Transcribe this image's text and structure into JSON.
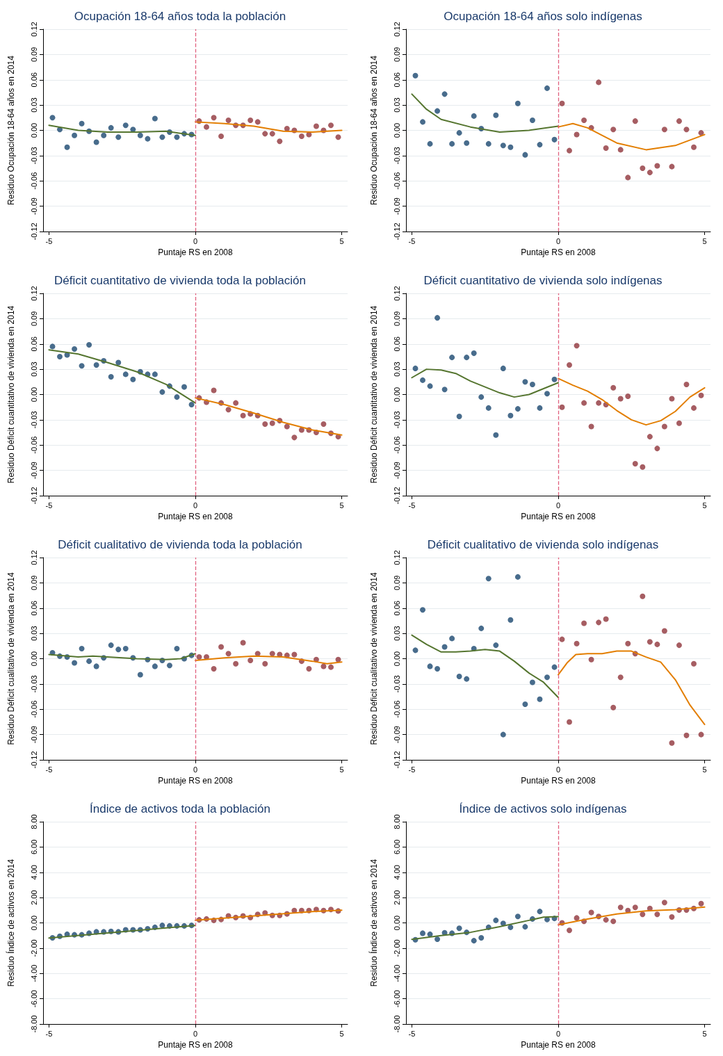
{
  "chart_data": [
    {
      "type": "scatter",
      "title": "Ocupación 18-64 años toda la población",
      "xlabel": "Puntaje RS en 2008",
      "ylabel": "Residuo Ocupación 18-64 años en 2014",
      "xlim": [
        -5.2,
        5.2
      ],
      "xticks": [
        -5,
        0,
        5
      ],
      "ylim": [
        -0.12,
        0.12
      ],
      "yticks": [
        -0.12,
        -0.09,
        -0.06,
        -0.03,
        {
          "value": 0,
          "label": "0.00"
        },
        0.03,
        0.06,
        0.09,
        0.12
      ],
      "grid": "y",
      "marker": "circle",
      "ref_lines": [
        {
          "axis": "x",
          "value": 0,
          "color": "#e0607e",
          "line_style": "dashed"
        }
      ],
      "series": [
        {
          "type": "scatter",
          "color": "#1a476f",
          "x": [
            -4.88,
            -4.63,
            -4.38,
            -4.13,
            -3.88,
            -3.63,
            -3.38,
            -3.13,
            -2.88,
            -2.63,
            -2.38,
            -2.13,
            -1.88,
            -1.63,
            -1.38,
            -1.13,
            -0.88,
            -0.63,
            -0.38,
            -0.13
          ],
          "values": [
            0.015,
            0.001,
            -0.02,
            -0.006,
            0.008,
            -0.001,
            -0.014,
            -0.006,
            0.003,
            -0.008,
            0.006,
            0.001,
            -0.006,
            -0.01,
            0.014,
            -0.008,
            -0.002,
            -0.008,
            -0.004,
            -0.005
          ]
        },
        {
          "type": "scatter",
          "color": "#90353b",
          "x": [
            0.13,
            0.38,
            0.63,
            0.88,
            1.13,
            1.38,
            1.63,
            1.88,
            2.13,
            2.38,
            2.63,
            2.88,
            3.13,
            3.38,
            3.63,
            3.88,
            4.13,
            4.38,
            4.63,
            4.88
          ],
          "values": [
            0.011,
            0.004,
            0.015,
            -0.007,
            0.012,
            0.006,
            0.006,
            0.012,
            0.01,
            -0.004,
            -0.004,
            -0.013,
            0.002,
            0,
            -0.007,
            -0.005,
            0.005,
            0,
            0.006,
            -0.008
          ]
        },
        {
          "type": "line",
          "marker": "none",
          "color": "#55752f",
          "x": [
            -5,
            -4,
            -3,
            -2,
            -1,
            0
          ],
          "values": [
            0.006,
            0,
            -0.002,
            -0.002,
            -0.001,
            -0.006
          ]
        },
        {
          "type": "line",
          "marker": "none",
          "color": "#e37e00",
          "x": [
            0,
            1,
            2,
            3,
            4,
            5
          ],
          "values": [
            0.01,
            0.008,
            0.005,
            -0.001,
            -0.002,
            0
          ]
        }
      ]
    },
    {
      "type": "scatter",
      "title": "Ocupación 18-64 años solo indígenas",
      "xlabel": "Puntaje RS en 2008",
      "ylabel": "Residuo Ocupación 18-64 años en 2014",
      "xlim": [
        -5.2,
        5.2
      ],
      "xticks": [
        -5,
        0,
        5
      ],
      "ylim": [
        -0.12,
        0.12
      ],
      "yticks": [
        -0.12,
        -0.09,
        -0.06,
        -0.03,
        {
          "value": 0,
          "label": "0.00"
        },
        0.03,
        0.06,
        0.09,
        0.12
      ],
      "grid": "y",
      "marker": "circle",
      "ref_lines": [
        {
          "axis": "x",
          "value": 0,
          "color": "#e0607e",
          "line_style": "dashed"
        }
      ],
      "series": [
        {
          "type": "scatter",
          "color": "#1a476f",
          "x": [
            -4.88,
            -4.63,
            -4.38,
            -4.13,
            -3.88,
            -3.63,
            -3.38,
            -3.13,
            -2.88,
            -2.63,
            -2.38,
            -2.13,
            -1.88,
            -1.63,
            -1.38,
            -1.13,
            -0.88,
            -0.63,
            -0.38,
            -0.13
          ],
          "values": [
            0.065,
            0.01,
            -0.016,
            0.023,
            0.043,
            -0.016,
            -0.003,
            -0.015,
            0.017,
            0.002,
            -0.016,
            0.018,
            -0.018,
            -0.02,
            0.032,
            -0.029,
            0.012,
            -0.017,
            0.05,
            -0.011
          ]
        },
        {
          "type": "scatter",
          "color": "#90353b",
          "x": [
            0.13,
            0.38,
            0.63,
            0.88,
            1.13,
            1.38,
            1.63,
            1.88,
            2.13,
            2.38,
            2.63,
            2.88,
            3.13,
            3.38,
            3.63,
            3.88,
            4.13,
            4.38,
            4.63,
            4.88
          ],
          "values": [
            0.032,
            -0.024,
            -0.005,
            0.012,
            0.003,
            0.057,
            -0.021,
            0.001,
            -0.023,
            -0.056,
            0.011,
            -0.045,
            -0.05,
            -0.042,
            0.001,
            -0.043,
            0.011,
            0.001,
            -0.02,
            -0.003
          ]
        },
        {
          "type": "line",
          "marker": "none",
          "color": "#55752f",
          "x": [
            -5,
            -4.5,
            -4,
            -3,
            -2,
            -1,
            0
          ],
          "values": [
            0.043,
            0.025,
            0.013,
            0.004,
            -0.002,
            0,
            0.005
          ]
        },
        {
          "type": "line",
          "marker": "none",
          "color": "#e37e00",
          "x": [
            0,
            0.5,
            1,
            2,
            3,
            4,
            5
          ],
          "values": [
            0.004,
            0.008,
            0.003,
            -0.015,
            -0.023,
            -0.018,
            -0.005
          ]
        }
      ]
    },
    {
      "type": "scatter",
      "title": "Déficit cuantitativo de vivienda toda la población",
      "xlabel": "Puntaje RS en 2008",
      "ylabel": "Residuo Déficit cuantitativo de vivienda en 2014",
      "xlim": [
        -5.2,
        5.2
      ],
      "xticks": [
        -5,
        0,
        5
      ],
      "ylim": [
        -0.12,
        0.12
      ],
      "yticks": [
        -0.12,
        -0.09,
        -0.06,
        -0.03,
        {
          "value": 0,
          "label": "0.00"
        },
        0.03,
        0.06,
        0.09,
        0.12
      ],
      "grid": "y",
      "marker": "circle",
      "ref_lines": [
        {
          "axis": "x",
          "value": 0,
          "color": "#e0607e",
          "line_style": "dashed"
        }
      ],
      "series": [
        {
          "type": "scatter",
          "color": "#1a476f",
          "x": [
            -4.88,
            -4.63,
            -4.38,
            -4.13,
            -3.88,
            -3.63,
            -3.38,
            -3.13,
            -2.88,
            -2.63,
            -2.38,
            -2.13,
            -1.88,
            -1.63,
            -1.38,
            -1.13,
            -0.88,
            -0.63,
            -0.38,
            -0.13
          ],
          "values": [
            0.057,
            0.045,
            0.047,
            0.054,
            0.034,
            0.059,
            0.035,
            0.04,
            0.021,
            0.038,
            0.024,
            0.018,
            0.027,
            0.024,
            0.024,
            0.003,
            0.01,
            -0.003,
            0.009,
            -0.012
          ]
        },
        {
          "type": "scatter",
          "color": "#90353b",
          "x": [
            0.13,
            0.38,
            0.63,
            0.88,
            1.13,
            1.38,
            1.63,
            1.88,
            2.13,
            2.38,
            2.63,
            2.88,
            3.13,
            3.38,
            3.63,
            3.88,
            4.13,
            4.38,
            4.63,
            4.88
          ],
          "values": [
            -0.004,
            -0.009,
            0.005,
            -0.01,
            -0.018,
            -0.01,
            -0.025,
            -0.023,
            -0.025,
            -0.035,
            -0.034,
            -0.031,
            -0.038,
            -0.051,
            -0.042,
            -0.042,
            -0.045,
            -0.035,
            -0.046,
            -0.05
          ]
        },
        {
          "type": "line",
          "marker": "none",
          "color": "#55752f",
          "x": [
            -5,
            -4,
            -3,
            -2,
            -1,
            0
          ],
          "values": [
            0.053,
            0.048,
            0.038,
            0.027,
            0.012,
            -0.01
          ]
        },
        {
          "type": "line",
          "marker": "none",
          "color": "#e37e00",
          "x": [
            0,
            1,
            2,
            3,
            4,
            5
          ],
          "values": [
            -0.004,
            -0.012,
            -0.022,
            -0.033,
            -0.042,
            -0.048
          ]
        }
      ]
    },
    {
      "type": "scatter",
      "title": "Déficit cuantitativo de vivienda solo indígenas",
      "xlabel": "Puntaje RS en 2008",
      "ylabel": "Residuo Déficit cuantitativo de vivienda en 2014",
      "xlim": [
        -5.2,
        5.2
      ],
      "xticks": [
        -5,
        0,
        5
      ],
      "ylim": [
        -0.12,
        0.12
      ],
      "yticks": [
        -0.12,
        -0.09,
        -0.06,
        -0.03,
        {
          "value": 0,
          "label": "0.00"
        },
        0.03,
        0.06,
        0.09,
        0.12
      ],
      "grid": "y",
      "marker": "circle",
      "ref_lines": [
        {
          "axis": "x",
          "value": 0,
          "color": "#e0607e",
          "line_style": "dashed"
        }
      ],
      "series": [
        {
          "type": "scatter",
          "color": "#1a476f",
          "x": [
            -4.88,
            -4.63,
            -4.38,
            -4.13,
            -3.88,
            -3.63,
            -3.38,
            -3.13,
            -2.88,
            -2.63,
            -2.38,
            -2.13,
            -1.88,
            -1.63,
            -1.38,
            -1.13,
            -0.88,
            -0.63,
            -0.38,
            -0.13
          ],
          "values": [
            0.031,
            0.017,
            0.01,
            0.091,
            0.006,
            0.044,
            -0.026,
            0.044,
            0.049,
            -0.003,
            -0.016,
            -0.048,
            0.031,
            -0.025,
            -0.017,
            0.015,
            0.012,
            -0.016,
            0.001,
            0.018
          ]
        },
        {
          "type": "scatter",
          "color": "#90353b",
          "x": [
            0.13,
            0.38,
            0.63,
            0.88,
            1.13,
            1.38,
            1.63,
            1.88,
            2.13,
            2.38,
            2.63,
            2.88,
            3.13,
            3.38,
            3.63,
            3.88,
            4.13,
            4.38,
            4.63,
            4.88
          ],
          "values": [
            -0.015,
            0.035,
            0.058,
            -0.01,
            -0.038,
            -0.01,
            -0.012,
            0.008,
            -0.005,
            -0.002,
            -0.082,
            -0.086,
            -0.05,
            -0.064,
            -0.038,
            -0.005,
            -0.034,
            0.012,
            -0.016,
            -0.001
          ]
        },
        {
          "type": "line",
          "marker": "none",
          "color": "#55752f",
          "x": [
            -5,
            -4.5,
            -4,
            -3.5,
            -3,
            -2,
            -1.5,
            -1,
            -0.5,
            0
          ],
          "values": [
            0.02,
            0.03,
            0.029,
            0.025,
            0.016,
            0.002,
            -0.003,
            0,
            0.007,
            0.014
          ]
        },
        {
          "type": "line",
          "marker": "none",
          "color": "#e37e00",
          "x": [
            0,
            0.5,
            1,
            1.5,
            2,
            2.5,
            3,
            3.5,
            4,
            4.5,
            5
          ],
          "values": [
            0.019,
            0.011,
            0.004,
            -0.006,
            -0.019,
            -0.03,
            -0.036,
            -0.031,
            -0.02,
            -0.003,
            0.008
          ]
        }
      ]
    },
    {
      "type": "scatter",
      "title": "Déficit cualitativo de vivienda toda la población",
      "xlabel": "Puntaje RS en 2008",
      "ylabel": "Residuo Déficit cualitativo de vivienda en 2014",
      "xlim": [
        -5.2,
        5.2
      ],
      "xticks": [
        -5,
        0,
        5
      ],
      "ylim": [
        -0.12,
        0.12
      ],
      "yticks": [
        -0.12,
        -0.09,
        -0.06,
        -0.03,
        {
          "value": 0,
          "label": "0.00"
        },
        0.03,
        0.06,
        0.09,
        0.12
      ],
      "grid": "y",
      "marker": "circle",
      "ref_lines": [
        {
          "axis": "x",
          "value": 0,
          "color": "#e0607e",
          "line_style": "dashed"
        }
      ],
      "series": [
        {
          "type": "scatter",
          "color": "#1a476f",
          "x": [
            -4.88,
            -4.63,
            -4.38,
            -4.13,
            -3.88,
            -3.63,
            -3.38,
            -3.13,
            -2.88,
            -2.63,
            -2.38,
            -2.13,
            -1.88,
            -1.63,
            -1.38,
            -1.13,
            -0.88,
            -0.63,
            -0.38,
            -0.13
          ],
          "values": [
            0.007,
            0.003,
            0.002,
            -0.005,
            0.012,
            -0.003,
            -0.009,
            0.001,
            0.016,
            0.011,
            0.012,
            0.001,
            -0.019,
            -0.001,
            -0.009,
            -0.002,
            -0.008,
            0.012,
            0,
            0.004
          ]
        },
        {
          "type": "scatter",
          "color": "#90353b",
          "x": [
            0.13,
            0.38,
            0.63,
            0.88,
            1.13,
            1.38,
            1.63,
            1.88,
            2.13,
            2.38,
            2.63,
            2.88,
            3.13,
            3.38,
            3.63,
            3.88,
            4.13,
            4.38,
            4.63,
            4.88
          ],
          "values": [
            0.002,
            0.002,
            -0.012,
            0.014,
            0.006,
            -0.006,
            0.019,
            -0.002,
            0.006,
            -0.006,
            0.006,
            0.005,
            0.004,
            0.005,
            -0.003,
            -0.012,
            -0.001,
            -0.009,
            -0.01,
            -0.001
          ]
        },
        {
          "type": "line",
          "marker": "none",
          "color": "#55752f",
          "x": [
            -5,
            -4,
            -3.5,
            -3,
            -2,
            -1,
            -0.5,
            0
          ],
          "values": [
            0.005,
            0.002,
            0.003,
            0.002,
            0,
            -0.001,
            0,
            0.006
          ]
        },
        {
          "type": "line",
          "marker": "none",
          "color": "#e37e00",
          "x": [
            0,
            1,
            2,
            3,
            4,
            4.5,
            5
          ],
          "values": [
            -0.002,
            0.001,
            0.003,
            0.002,
            -0.003,
            -0.006,
            -0.004
          ]
        }
      ]
    },
    {
      "type": "scatter",
      "title": "Déficit cualitativo de vivienda solo indígenas",
      "xlabel": "Puntaje RS en 2008",
      "ylabel": "Residuo Déficit cualitativo de vivienda en 2014",
      "xlim": [
        -5.2,
        5.2
      ],
      "xticks": [
        -5,
        0,
        5
      ],
      "ylim": [
        -0.12,
        0.12
      ],
      "yticks": [
        -0.12,
        -0.09,
        -0.06,
        -0.03,
        {
          "value": 0,
          "label": "0.00"
        },
        0.03,
        0.06,
        0.09,
        0.12
      ],
      "grid": "y",
      "marker": "circle",
      "ref_lines": [
        {
          "axis": "x",
          "value": 0,
          "color": "#e0607e",
          "line_style": "dashed"
        }
      ],
      "series": [
        {
          "type": "scatter",
          "color": "#1a476f",
          "x": [
            -4.88,
            -4.63,
            -4.38,
            -4.13,
            -3.88,
            -3.63,
            -3.38,
            -3.13,
            -2.88,
            -2.63,
            -2.38,
            -2.13,
            -1.88,
            -1.63,
            -1.38,
            -1.13,
            -0.88,
            -0.63,
            -0.38,
            -0.13
          ],
          "values": [
            0.01,
            0.058,
            -0.009,
            -0.012,
            0.014,
            0.024,
            -0.021,
            -0.024,
            0.012,
            0.036,
            0.095,
            0.016,
            -0.09,
            0.046,
            0.097,
            -0.054,
            -0.028,
            -0.048,
            -0.022,
            -0.01
          ]
        },
        {
          "type": "scatter",
          "color": "#90353b",
          "x": [
            0.13,
            0.38,
            0.63,
            0.88,
            1.13,
            1.38,
            1.63,
            1.88,
            2.13,
            2.38,
            2.63,
            2.88,
            3.13,
            3.38,
            3.63,
            3.88,
            4.13,
            4.38,
            4.63,
            4.88
          ],
          "values": [
            0.023,
            -0.075,
            0.018,
            0.042,
            -0.001,
            0.043,
            0.047,
            -0.058,
            -0.022,
            0.018,
            0.006,
            0.074,
            0.02,
            0.017,
            0.033,
            -0.1,
            0.016,
            -0.091,
            -0.006,
            -0.09
          ]
        },
        {
          "type": "line",
          "marker": "none",
          "color": "#55752f",
          "x": [
            -5,
            -4.5,
            -4,
            -3.5,
            -3,
            -2.5,
            -2,
            -1.5,
            -1,
            -0.5,
            0
          ],
          "values": [
            0.028,
            0.017,
            0.008,
            0.008,
            0.009,
            0.011,
            0.009,
            -0.003,
            -0.017,
            -0.028,
            -0.046
          ]
        },
        {
          "type": "line",
          "marker": "none",
          "color": "#e37e00",
          "x": [
            0,
            0.3,
            0.6,
            1,
            1.5,
            2,
            2.5,
            3,
            3.5,
            4,
            4.5,
            5
          ],
          "values": [
            -0.019,
            -0.005,
            0.005,
            0.006,
            0.006,
            0.009,
            0.009,
            0.002,
            -0.004,
            -0.025,
            -0.055,
            -0.078
          ]
        }
      ]
    },
    {
      "type": "scatter",
      "title": "Índice de activos toda la población",
      "xlabel": "Puntaje RS en 2008",
      "ylabel": "Residuo Índice de activos en 2014",
      "xlim": [
        -5.2,
        5.2
      ],
      "xticks": [
        -5,
        0,
        5
      ],
      "ylim": [
        -8,
        8
      ],
      "yticks": [
        {
          "value": -8,
          "label": "-8.00"
        },
        {
          "value": -6,
          "label": "-6.00"
        },
        {
          "value": -4,
          "label": "-4.00"
        },
        {
          "value": -2,
          "label": "-2.00"
        },
        {
          "value": 0,
          "label": "0.00"
        },
        {
          "value": 2,
          "label": "2.00"
        },
        {
          "value": 4,
          "label": "4.00"
        },
        {
          "value": 6,
          "label": "6.00"
        },
        {
          "value": 8,
          "label": "8.00"
        }
      ],
      "grid": "y",
      "marker": "circle",
      "ref_lines": [
        {
          "axis": "x",
          "value": 0,
          "color": "#e0607e",
          "line_style": "dashed"
        }
      ],
      "series": [
        {
          "type": "scatter",
          "color": "#1a476f",
          "x": [
            -4.88,
            -4.63,
            -4.38,
            -4.13,
            -3.88,
            -3.63,
            -3.38,
            -3.13,
            -2.88,
            -2.63,
            -2.38,
            -2.13,
            -1.88,
            -1.63,
            -1.38,
            -1.13,
            -0.88,
            -0.63,
            -0.38,
            -0.13
          ],
          "values": [
            -1.18,
            -1.06,
            -0.9,
            -0.94,
            -0.94,
            -0.82,
            -0.71,
            -0.71,
            -0.67,
            -0.71,
            -0.55,
            -0.55,
            -0.55,
            -0.47,
            -0.35,
            -0.2,
            -0.24,
            -0.24,
            -0.24,
            -0.2
          ]
        },
        {
          "type": "scatter",
          "color": "#90353b",
          "x": [
            0.13,
            0.38,
            0.63,
            0.88,
            1.13,
            1.38,
            1.63,
            1.88,
            2.13,
            2.38,
            2.63,
            2.88,
            3.13,
            3.38,
            3.63,
            3.88,
            4.13,
            4.38,
            4.63,
            4.88
          ],
          "values": [
            0.24,
            0.31,
            0.2,
            0.27,
            0.55,
            0.43,
            0.55,
            0.43,
            0.67,
            0.78,
            0.59,
            0.59,
            0.71,
            0.98,
            0.98,
            0.98,
            1.06,
            0.98,
            1.06,
            0.94
          ]
        },
        {
          "type": "line",
          "marker": "none",
          "color": "#55752f",
          "x": [
            -5,
            -2.5,
            0
          ],
          "values": [
            -1.2,
            -0.7,
            -0.2
          ]
        },
        {
          "type": "line",
          "marker": "none",
          "color": "#e37e00",
          "x": [
            0,
            2,
            4,
            5
          ],
          "values": [
            0.2,
            0.55,
            0.9,
            1.0
          ]
        }
      ]
    },
    {
      "type": "scatter",
      "title": "Índice de activos solo indígenas",
      "xlabel": "Puntaje RS en 2008",
      "ylabel": "Residuo Índice de activos en 2014",
      "xlim": [
        -5.2,
        5.2
      ],
      "xticks": [
        -5,
        0,
        5
      ],
      "ylim": [
        -8,
        8
      ],
      "yticks": [
        {
          "value": -8,
          "label": "-8.00"
        },
        {
          "value": -6,
          "label": "-6.00"
        },
        {
          "value": -4,
          "label": "-4.00"
        },
        {
          "value": -2,
          "label": "-2.00"
        },
        {
          "value": 0,
          "label": "0.00"
        },
        {
          "value": 2,
          "label": "2.00"
        },
        {
          "value": 4,
          "label": "4.00"
        },
        {
          "value": 6,
          "label": "6.00"
        },
        {
          "value": 8,
          "label": "8.00"
        }
      ],
      "grid": "y",
      "marker": "circle",
      "ref_lines": [
        {
          "axis": "x",
          "value": 0,
          "color": "#e0607e",
          "line_style": "dashed"
        }
      ],
      "series": [
        {
          "type": "scatter",
          "color": "#1a476f",
          "x": [
            -4.88,
            -4.63,
            -4.38,
            -4.13,
            -3.88,
            -3.63,
            -3.38,
            -3.13,
            -2.88,
            -2.63,
            -2.38,
            -2.13,
            -1.88,
            -1.63,
            -1.38,
            -1.13,
            -0.88,
            -0.63,
            -0.38,
            -0.13
          ],
          "values": [
            -1.33,
            -0.82,
            -0.9,
            -1.29,
            -0.78,
            -0.82,
            -0.43,
            -0.75,
            -1.41,
            -1.18,
            -0.35,
            0.2,
            -0.04,
            -0.35,
            0.51,
            -0.31,
            0.31,
            0.9,
            0.27,
            0.35
          ]
        },
        {
          "type": "scatter",
          "color": "#90353b",
          "x": [
            0.13,
            0.38,
            0.63,
            0.88,
            1.13,
            1.38,
            1.63,
            1.88,
            2.13,
            2.38,
            2.63,
            2.88,
            3.13,
            3.38,
            3.63,
            3.88,
            4.13,
            4.38,
            4.63,
            4.88
          ],
          "values": [
            0,
            -0.59,
            0.39,
            0.12,
            0.82,
            0.51,
            0.24,
            0.12,
            1.22,
            0.98,
            1.22,
            0.67,
            1.14,
            0.67,
            1.61,
            0.47,
            1.02,
            1.02,
            1.14,
            1.53
          ]
        },
        {
          "type": "line",
          "marker": "none",
          "color": "#55752f",
          "x": [
            -5,
            -4,
            -3,
            -2,
            -1,
            -0.5,
            0
          ],
          "values": [
            -1.3,
            -1.0,
            -0.75,
            -0.3,
            0.2,
            0.45,
            0.5
          ]
        },
        {
          "type": "line",
          "marker": "none",
          "color": "#e37e00",
          "x": [
            0,
            1,
            2,
            3,
            4,
            5
          ],
          "values": [
            -0.15,
            0.3,
            0.7,
            0.95,
            1.05,
            1.25
          ]
        }
      ]
    }
  ]
}
